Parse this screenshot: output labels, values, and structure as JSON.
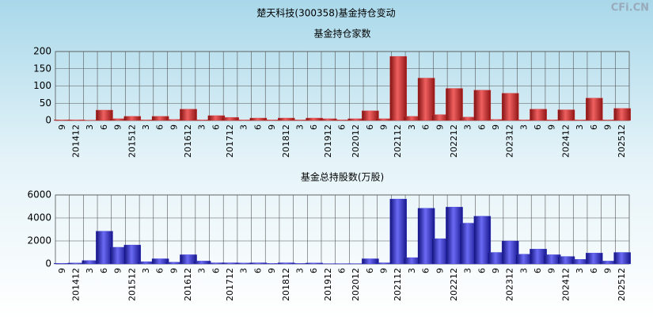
{
  "title": "楚天科技(300358)基金持仓变动",
  "watermark": "CFi.CN",
  "chart_data": [
    {
      "type": "bar",
      "title": "基金持仓家数",
      "color": "#e03030",
      "categories": [
        "9",
        "201412",
        "3",
        "6",
        "9",
        "201512",
        "3",
        "6",
        "9",
        "201612",
        "3",
        "6",
        "201712",
        "3",
        "6",
        "9",
        "201812",
        "3",
        "6",
        "201912",
        "6",
        "202012",
        "6",
        "9",
        "202112",
        "3",
        "6",
        "9",
        "202212",
        "3",
        "6",
        "9",
        "202312",
        "3",
        "6",
        "9",
        "202412",
        "3",
        "6",
        "9",
        "202512"
      ],
      "values": [
        2,
        2,
        1,
        30,
        5,
        12,
        2,
        12,
        3,
        33,
        2,
        14,
        9,
        2,
        7,
        2,
        7,
        2,
        7,
        5,
        2,
        5,
        28,
        5,
        186,
        12,
        123,
        17,
        93,
        10,
        88,
        3,
        79,
        2,
        33,
        2,
        31,
        2,
        65,
        2,
        35
      ],
      "ylim": [
        0,
        200
      ],
      "yticks": [
        0,
        50,
        100,
        150,
        200
      ],
      "grid": true
    },
    {
      "type": "bar",
      "title": "基金总持股数(万股)",
      "color": "#3434d8",
      "categories": [
        "9",
        "201412",
        "3",
        "6",
        "9",
        "201512",
        "3",
        "6",
        "9",
        "201612",
        "3",
        "6",
        "201712",
        "3",
        "6",
        "9",
        "201812",
        "3",
        "6",
        "201912",
        "6",
        "202012",
        "6",
        "9",
        "202112",
        "3",
        "6",
        "9",
        "202212",
        "3",
        "6",
        "9",
        "202312",
        "3",
        "6",
        "9",
        "202412",
        "3",
        "6",
        "9",
        "202512"
      ],
      "values": [
        60,
        80,
        300,
        2850,
        1450,
        1650,
        200,
        450,
        150,
        800,
        250,
        100,
        100,
        80,
        100,
        50,
        100,
        50,
        80,
        30,
        30,
        30,
        450,
        100,
        5650,
        550,
        4850,
        2200,
        4950,
        3550,
        4150,
        1000,
        2000,
        850,
        1300,
        800,
        650,
        400,
        950,
        250,
        1000
      ],
      "ylim": [
        0,
        6000
      ],
      "yticks": [
        0,
        2000,
        4000,
        6000
      ],
      "grid": true
    }
  ]
}
